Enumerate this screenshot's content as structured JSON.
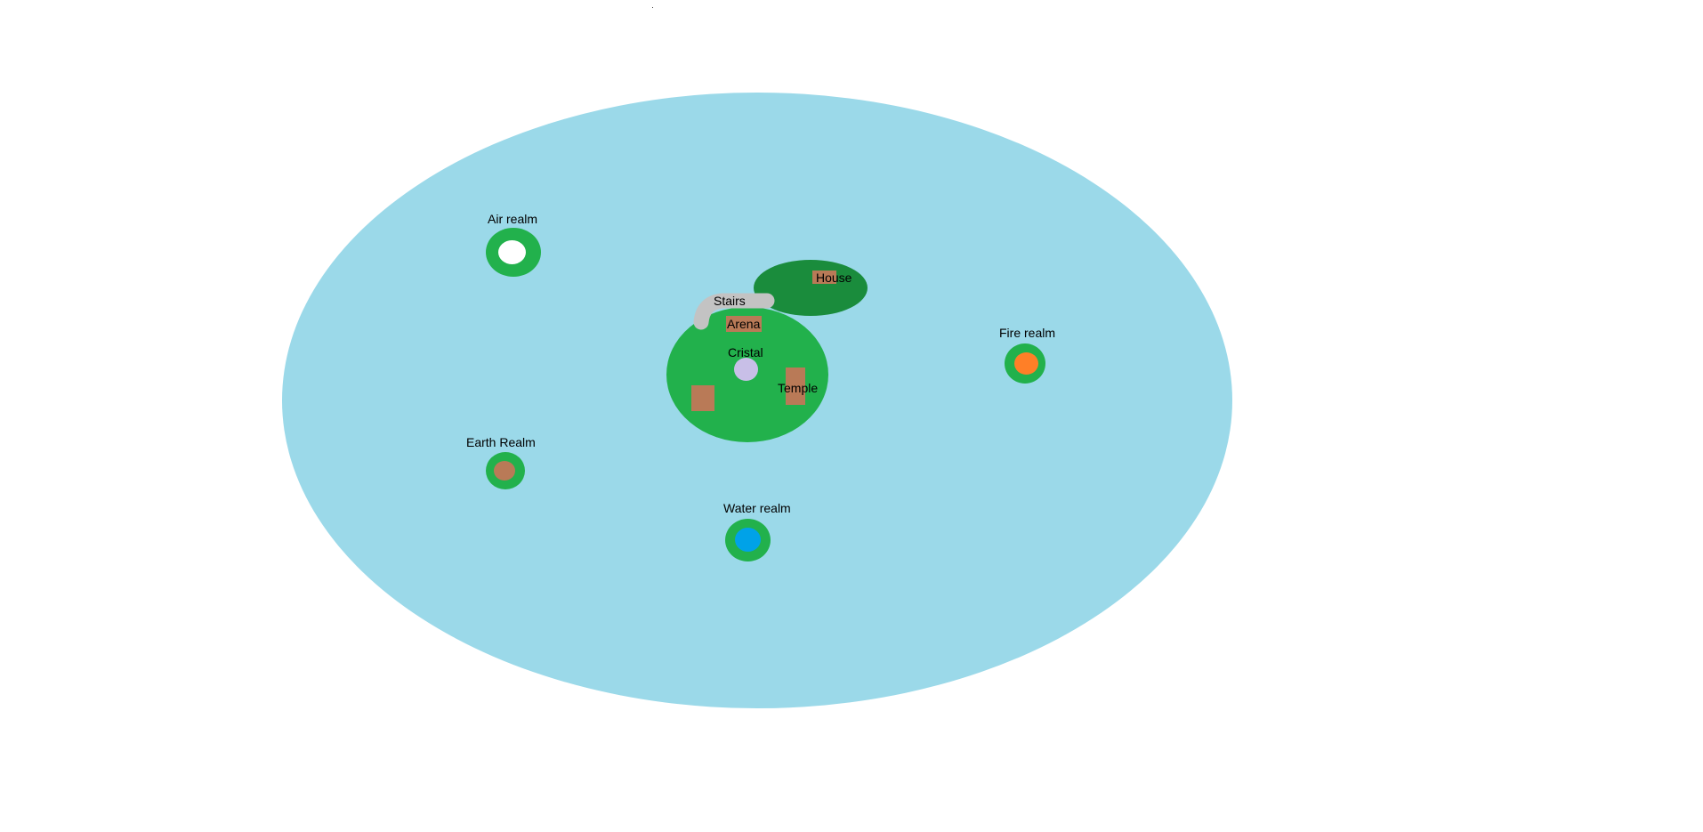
{
  "colors": {
    "background": "#ffffff",
    "sky": "#9bd9e9",
    "island_grass": "#22b14c",
    "house_island": "#1a8c3c",
    "building": "#b97a57",
    "stairs": "#c3c3c3",
    "crystal": "#c8bfe7",
    "air_core": "#ffffff",
    "fire_core": "#ff7f27",
    "earth_core": "#b97a57",
    "water_core": "#00a2e8",
    "speck": "#404040"
  },
  "labels": {
    "house": "House",
    "stairs": "Stairs",
    "arena": "Arena",
    "crystal": "Cristal",
    "temple": "Temple",
    "air_realm": "Air realm",
    "fire_realm": "Fire realm",
    "earth_realm": "Earth Realm",
    "water_realm": "Water realm"
  },
  "icons": {
    "crystal": "crystal-icon",
    "air_core": "air-core-icon",
    "fire_core": "fire-core-icon",
    "earth_core": "earth-core-icon",
    "water_core": "water-core-icon"
  }
}
